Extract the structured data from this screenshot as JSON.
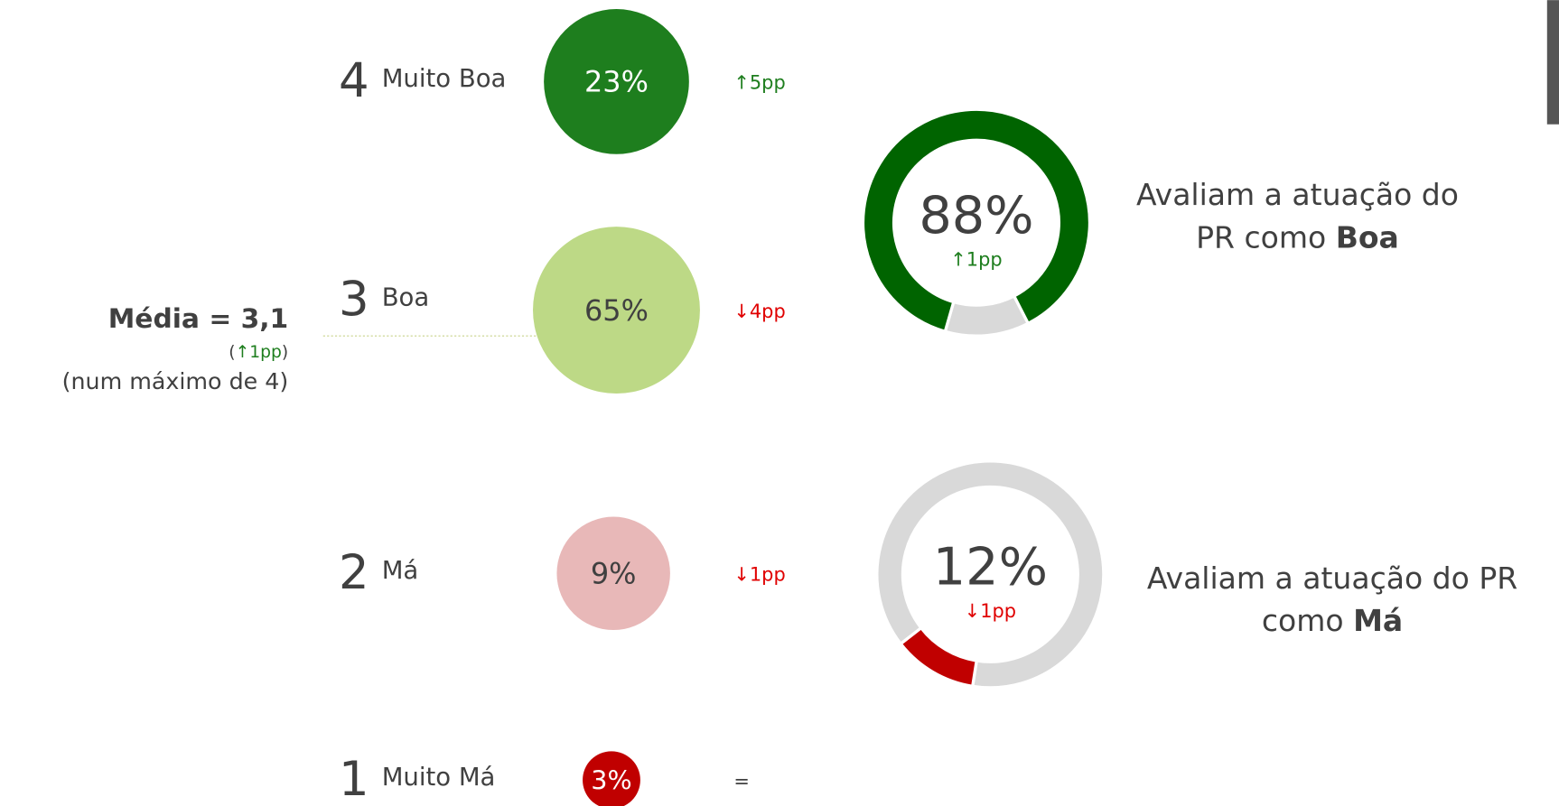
{
  "scale": {
    "items": [
      {
        "rank": "4",
        "label": "Muito Boa",
        "percent": "23%",
        "change": "↑5pp"
      },
      {
        "rank": "3",
        "label": "Boa",
        "percent": "65%",
        "change": "↓4pp"
      },
      {
        "rank": "2",
        "label": "Má",
        "percent": "9%",
        "change": "↓1pp"
      },
      {
        "rank": "1",
        "label": "Muito Má",
        "percent": "3%",
        "change": "="
      }
    ]
  },
  "average": {
    "title": "Média = 3,1",
    "open": "(",
    "change": "↑1pp",
    "close": ")",
    "note": "(num máximo de 4)"
  },
  "donuts": [
    {
      "value": 88,
      "value_label": "88%",
      "change": "↑1pp",
      "caption": [
        "Avaliam a atuação do",
        "PR como "
      ],
      "caption_bold": "Boa"
    },
    {
      "value": 12,
      "value_label": "12%",
      "change": "↓1pp",
      "caption": [
        "Avaliam a atuação do PR",
        "como "
      ],
      "caption_bold": "Má"
    }
  ]
}
